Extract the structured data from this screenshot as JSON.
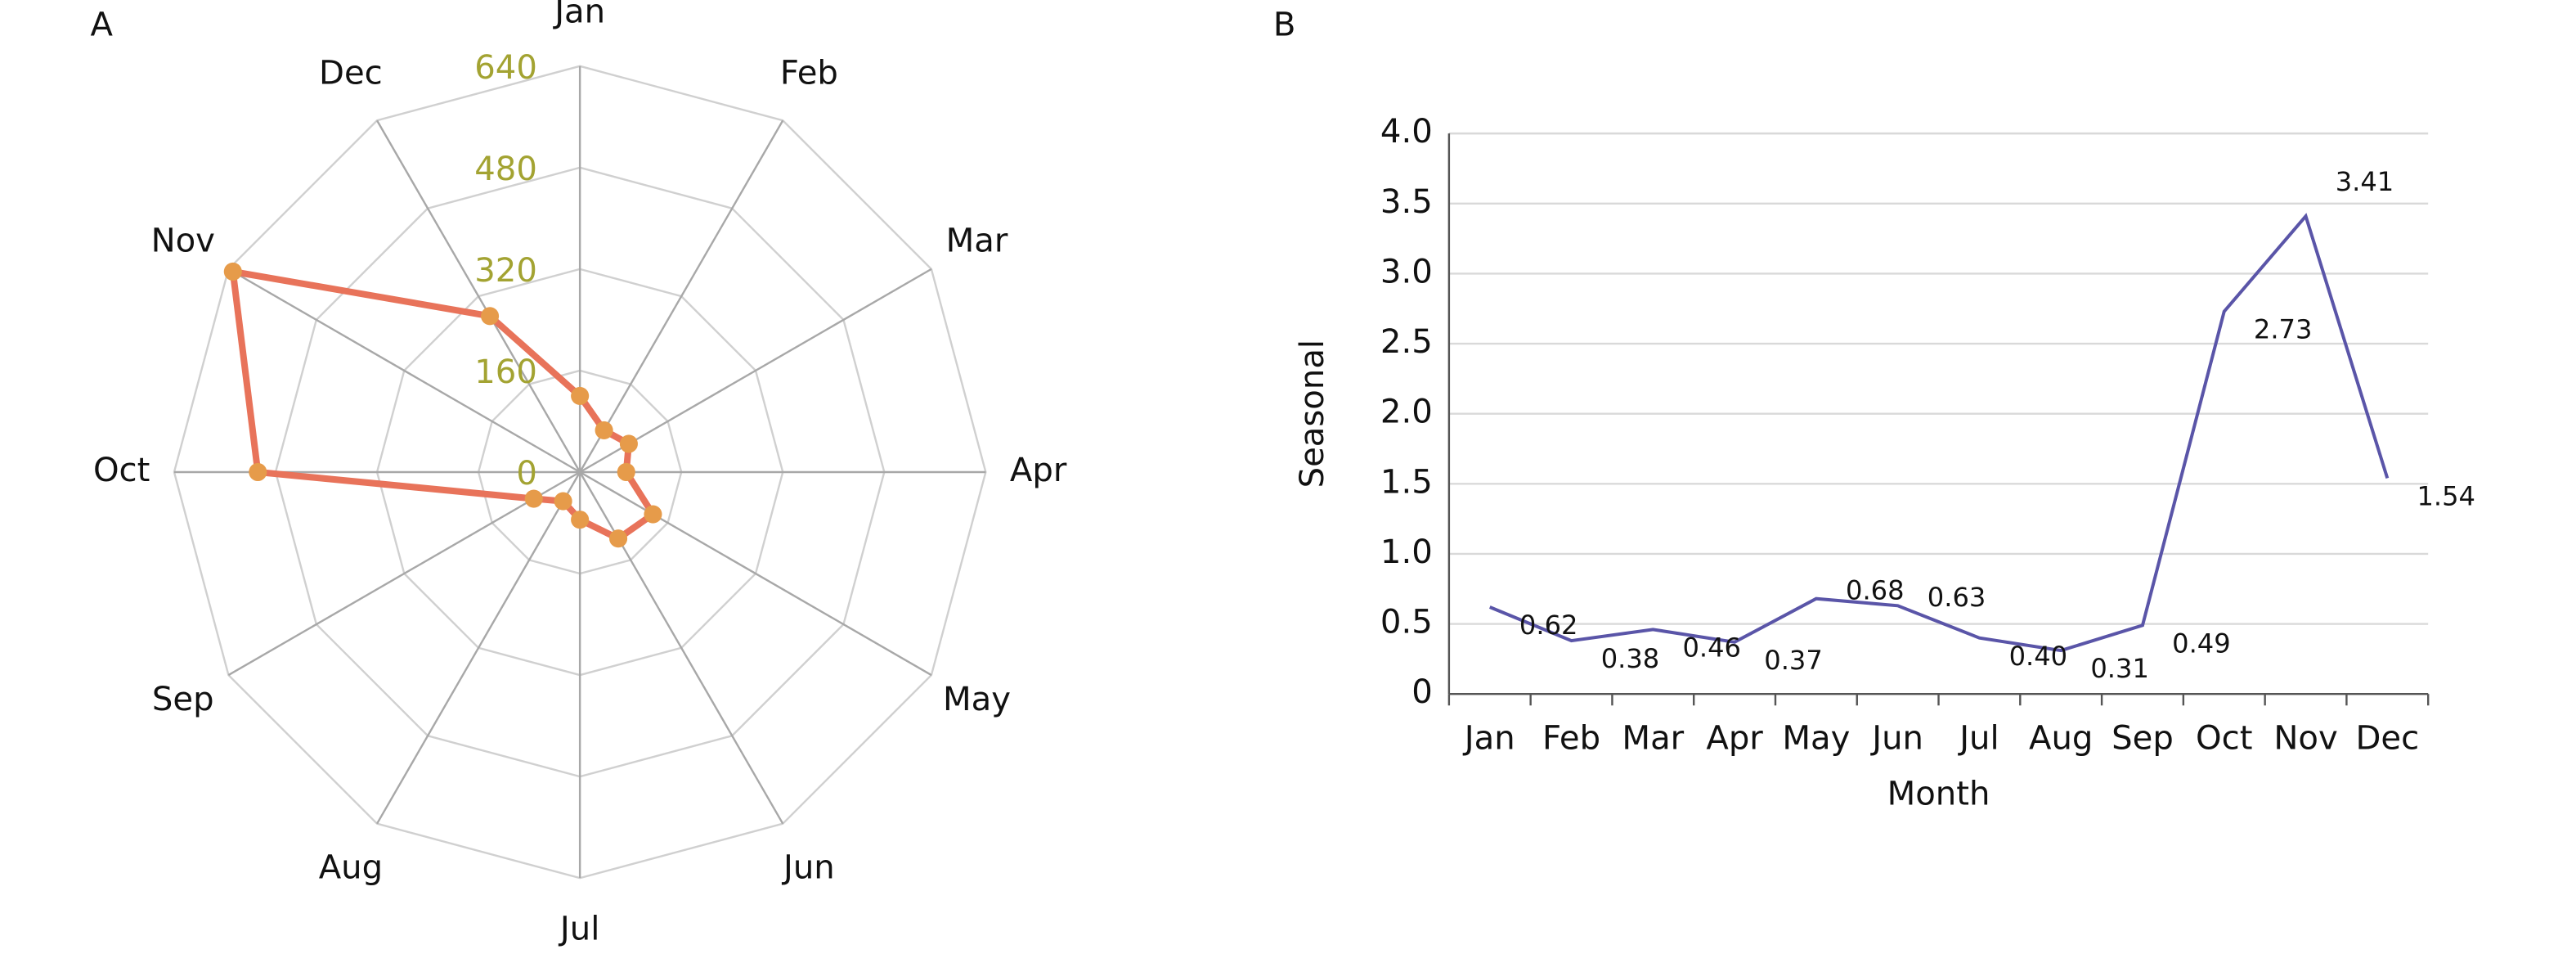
{
  "chart_data": [
    {
      "type": "radar",
      "panel": "A",
      "categories": [
        "Jan",
        "Feb",
        "Mar",
        "Apr",
        "May",
        "Jun",
        "Jul",
        "Aug",
        "Sep",
        "Oct",
        "Nov",
        "Dec"
      ],
      "values": [
        120,
        76,
        89,
        73,
        133,
        121,
        75,
        53,
        84,
        508,
        632,
        284
      ],
      "color": "#e8735a",
      "marker_color": "#e69b4a",
      "ylim": [
        0,
        640
      ],
      "yticks": [
        0,
        160,
        320,
        480,
        640
      ],
      "tick_color": "#a3a332",
      "grid": true
    },
    {
      "type": "line",
      "panel": "B",
      "categories": [
        "Jan",
        "Feb",
        "Mar",
        "Apr",
        "May",
        "Jun",
        "Jul",
        "Aug",
        "Sep",
        "Oct",
        "Nov",
        "Dec"
      ],
      "values": [
        0.62,
        0.38,
        0.46,
        0.37,
        0.68,
        0.63,
        0.4,
        0.31,
        0.49,
        2.73,
        3.41,
        1.54
      ],
      "value_labels": [
        "0.62",
        "0.38",
        "0.46",
        "0.37",
        "0.68",
        "0.63",
        "0.40",
        "0.31",
        "0.49",
        "2.73",
        "3.41",
        "1.54"
      ],
      "color": "#5a55a8",
      "xlabel": "Month",
      "ylabel": "Seasonal",
      "ylim": [
        0,
        4
      ],
      "yticks": [
        0,
        0.5,
        {
          "value": 1,
          "label": "1.0"
        },
        1.5,
        {
          "value": 2,
          "label": "2.0"
        },
        2.5,
        {
          "value": 3,
          "label": "3.0"
        },
        3.5,
        {
          "value": 4,
          "label": "4.0"
        }
      ],
      "grid": true
    }
  ]
}
